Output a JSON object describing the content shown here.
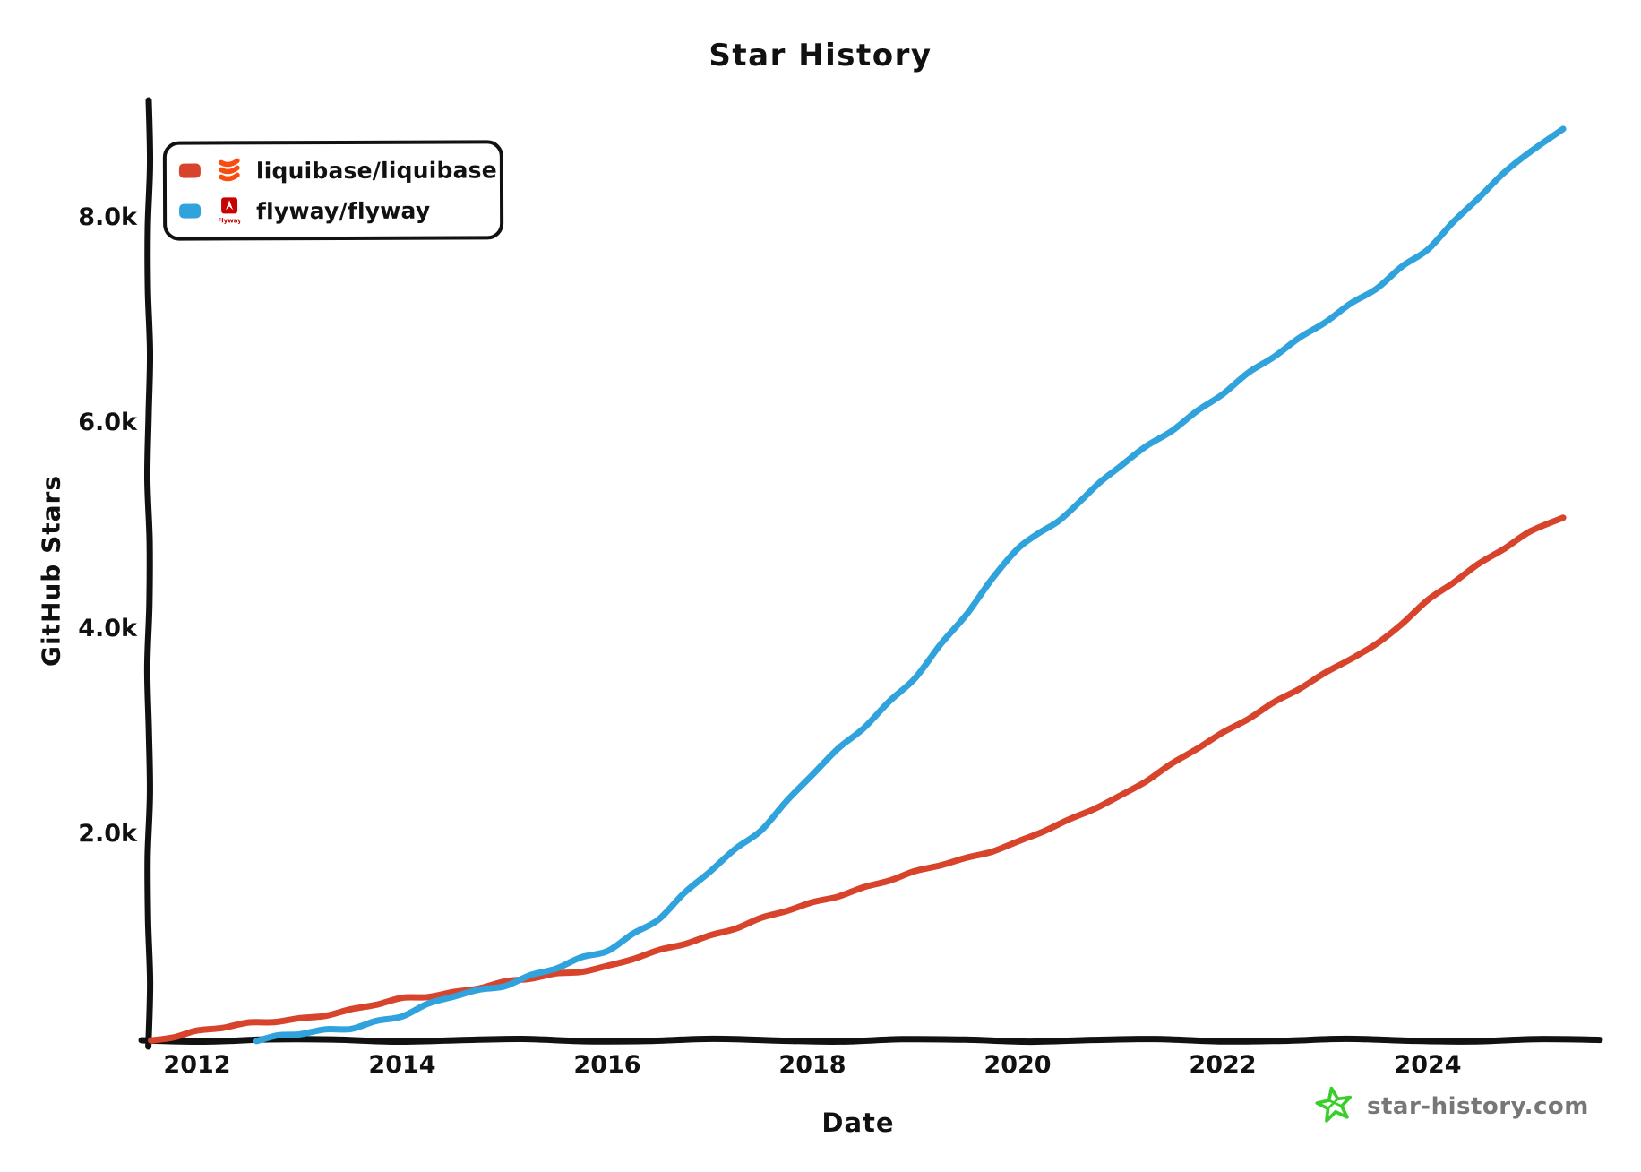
{
  "chart_data": {
    "type": "line",
    "title": "Star History",
    "xlabel": "Date",
    "ylabel": "GitHub Stars",
    "grid": false,
    "legend_position": "top-left",
    "xlim": [
      2011.5,
      2025.45
    ],
    "ylim": [
      0,
      9150
    ],
    "x_ticks": [
      {
        "value": 2012,
        "label": "2012"
      },
      {
        "value": 2014,
        "label": "2014"
      },
      {
        "value": 2016,
        "label": "2016"
      },
      {
        "value": 2018,
        "label": "2018"
      },
      {
        "value": 2020,
        "label": "2020"
      },
      {
        "value": 2022,
        "label": "2022"
      },
      {
        "value": 2024,
        "label": "2024"
      }
    ],
    "y_ticks": [
      {
        "value": 2000,
        "label": "2.0k"
      },
      {
        "value": 4000,
        "label": "4.0k"
      },
      {
        "value": 6000,
        "label": "6.0k"
      },
      {
        "value": 8000,
        "label": "8.0k"
      }
    ],
    "series": [
      {
        "name": "liquibase/liquibase",
        "color": "#d8432c",
        "points": [
          [
            2011.55,
            0
          ],
          [
            2012,
            90
          ],
          [
            2012.5,
            155
          ],
          [
            2013,
            215
          ],
          [
            2013.5,
            290
          ],
          [
            2014,
            400
          ],
          [
            2014.5,
            470
          ],
          [
            2015,
            555
          ],
          [
            2015.5,
            645
          ],
          [
            2016,
            720
          ],
          [
            2016.5,
            860
          ],
          [
            2017,
            1020
          ],
          [
            2017.5,
            1180
          ],
          [
            2018,
            1330
          ],
          [
            2018.5,
            1490
          ],
          [
            2019,
            1630
          ],
          [
            2019.5,
            1770
          ],
          [
            2020,
            1930
          ],
          [
            2020.5,
            2130
          ],
          [
            2021,
            2380
          ],
          [
            2021.5,
            2680
          ],
          [
            2022,
            2980
          ],
          [
            2022.5,
            3290
          ],
          [
            2023,
            3560
          ],
          [
            2023.5,
            3850
          ],
          [
            2024,
            4280
          ],
          [
            2024.5,
            4620
          ],
          [
            2025,
            4950
          ],
          [
            2025.32,
            5080
          ]
        ]
      },
      {
        "name": "flyway/flyway",
        "color": "#30a3dc",
        "points": [
          [
            2012.58,
            0
          ],
          [
            2013,
            60
          ],
          [
            2013.5,
            130
          ],
          [
            2014,
            240
          ],
          [
            2014.5,
            430
          ],
          [
            2015,
            545
          ],
          [
            2015.5,
            700
          ],
          [
            2016,
            880
          ],
          [
            2016.5,
            1190
          ],
          [
            2017,
            1640
          ],
          [
            2017.5,
            2060
          ],
          [
            2018,
            2590
          ],
          [
            2018.5,
            3040
          ],
          [
            2019,
            3540
          ],
          [
            2019.5,
            4140
          ],
          [
            2020,
            4790
          ],
          [
            2020.4,
            5060
          ],
          [
            2021,
            5580
          ],
          [
            2021.5,
            5940
          ],
          [
            2022,
            6290
          ],
          [
            2022.5,
            6650
          ],
          [
            2023,
            7000
          ],
          [
            2023.5,
            7310
          ],
          [
            2024,
            7700
          ],
          [
            2024.5,
            8210
          ],
          [
            2025,
            8640
          ],
          [
            2025.32,
            8860
          ]
        ]
      }
    ]
  },
  "legend": {
    "items": [
      {
        "label": "liquibase/liquibase",
        "swatch_color": "#d8432c",
        "icon": "liquibase-logo",
        "icon_color": "#f94d10"
      },
      {
        "label": "flyway/flyway",
        "swatch_color": "#30a3dc",
        "icon": "flyway-logo",
        "icon_color": "#c80202",
        "icon_text": "Flyway"
      }
    ]
  },
  "axis": {
    "color": "#111111"
  },
  "watermark": {
    "text": "star-history.com",
    "icon": "star",
    "icon_color": "#3ace2b",
    "text_color": "#777777"
  }
}
